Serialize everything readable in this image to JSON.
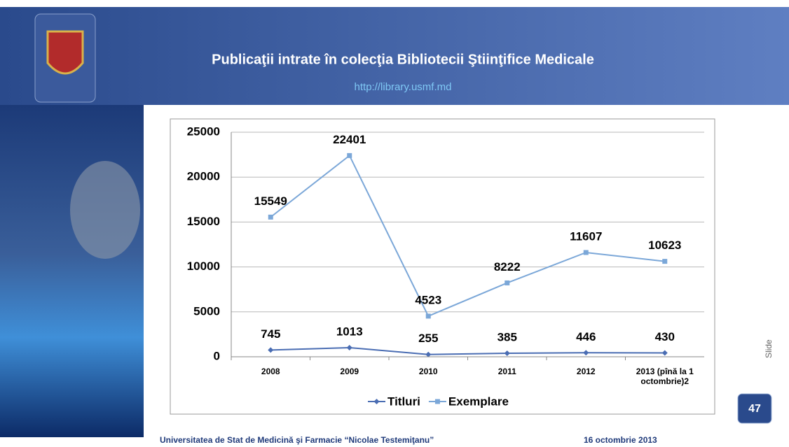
{
  "header": {
    "title": "Publicaţii intrate în colecţia Bibliotecii Ştiinţifice Medicale",
    "url": "http://library.usmf.md"
  },
  "chart_data": {
    "type": "line",
    "categories": [
      "2008",
      "2009",
      "2010",
      "2011",
      "2012",
      "2013 (pînă la 1 octombrie)2"
    ],
    "series": [
      {
        "name": "Titluri",
        "color": "#4a6db3",
        "marker": "diamond",
        "values": [
          745,
          1013,
          255,
          385,
          446,
          430
        ]
      },
      {
        "name": "Exemplare",
        "color": "#7ba7d8",
        "marker": "square",
        "values": [
          15549,
          22401,
          4523,
          8222,
          11607,
          10623
        ]
      }
    ],
    "ylim": [
      0,
      25000
    ],
    "yticks": [
      0,
      5000,
      10000,
      15000,
      20000,
      25000
    ],
    "grid": true,
    "legend": "bottom"
  },
  "footer": {
    "university": "Universitatea de Stat de Medicină şi Farmacie “Nicolae Testemiţanu”",
    "date": "16 octombrie 2013",
    "slide_label": "Slide",
    "slide_number": "47"
  }
}
